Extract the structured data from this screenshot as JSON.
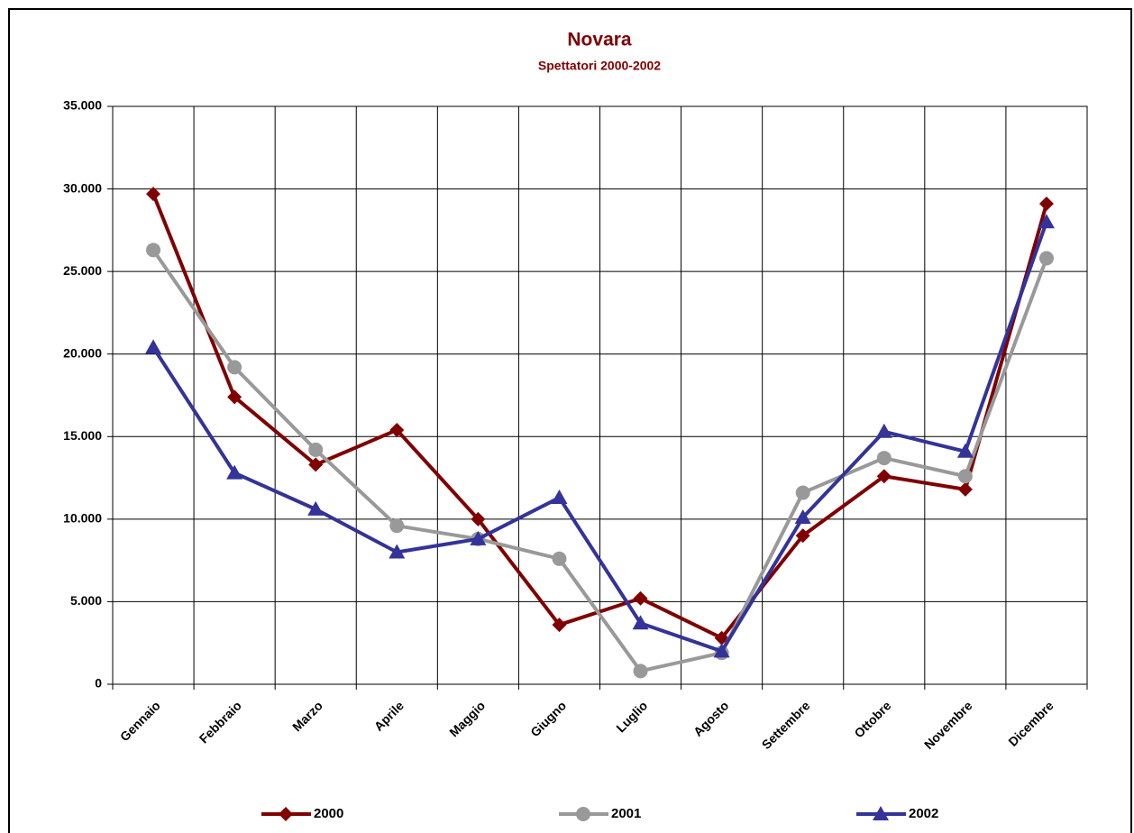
{
  "chart_data": {
    "type": "line",
    "title": "Novara",
    "subtitle": "Spettatori 2000-2002",
    "categories": [
      "Gennaio",
      "Febbraio",
      "Marzo",
      "Aprile",
      "Maggio",
      "Giugno",
      "Luglio",
      "Agosto",
      "Settembre",
      "Ottobre",
      "Novembre",
      "Dicembre"
    ],
    "series": [
      {
        "name": "2000",
        "color": "#800000",
        "marker": "diamond",
        "values": [
          29700,
          17400,
          13300,
          15400,
          10000,
          3600,
          5200,
          2800,
          9000,
          12600,
          11800,
          29100
        ]
      },
      {
        "name": "2001",
        "color": "#999999",
        "marker": "circle",
        "values": [
          26300,
          19200,
          14200,
          9600,
          8800,
          7600,
          800,
          1900,
          11600,
          13700,
          12600,
          25800
        ]
      },
      {
        "name": "2002",
        "color": "#333399",
        "marker": "triangle",
        "values": [
          20400,
          12800,
          10600,
          8000,
          8800,
          11300,
          3700,
          2000,
          10100,
          15300,
          14100,
          28000
        ]
      }
    ],
    "ylim": [
      0,
      35000
    ],
    "yticks": [
      0,
      {
        "value": 5000,
        "label": "5.000"
      },
      {
        "value": 10000,
        "label": "10.000"
      },
      {
        "value": 15000,
        "label": "15.000"
      },
      {
        "value": 20000,
        "label": "20.000"
      },
      {
        "value": 25000,
        "label": "25.000"
      },
      {
        "value": 30000,
        "label": "30.000"
      },
      {
        "value": 35000,
        "label": "35.000"
      }
    ],
    "grid": true,
    "legend": "bottom"
  }
}
